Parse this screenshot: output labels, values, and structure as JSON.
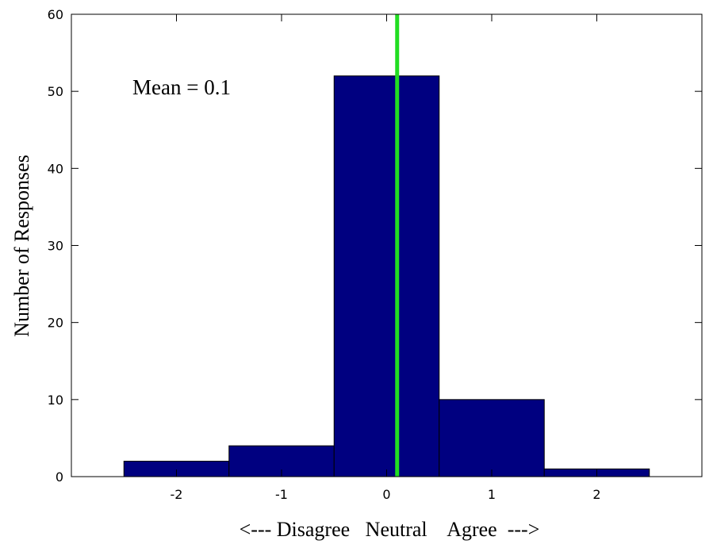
{
  "chart_data": {
    "type": "bar",
    "title": "",
    "categories": [
      "-2",
      "-1",
      "0",
      "1",
      "2"
    ],
    "x": [
      -2,
      -1,
      0,
      1,
      2
    ],
    "values": [
      2,
      4,
      52,
      10,
      1
    ],
    "xlabel": "<--- Disagree   Neutral    Agree  --->",
    "ylabel": "Number of Responses",
    "xlim": [
      -3,
      3
    ],
    "ylim": [
      0,
      60
    ],
    "yticks": [
      0,
      10,
      20,
      30,
      40,
      50,
      60
    ],
    "grid": false,
    "legend": null,
    "bar_color": "#000080",
    "mean": {
      "value": 0.1,
      "label": "Mean = 0.1",
      "line_color": "#22dd22"
    }
  }
}
